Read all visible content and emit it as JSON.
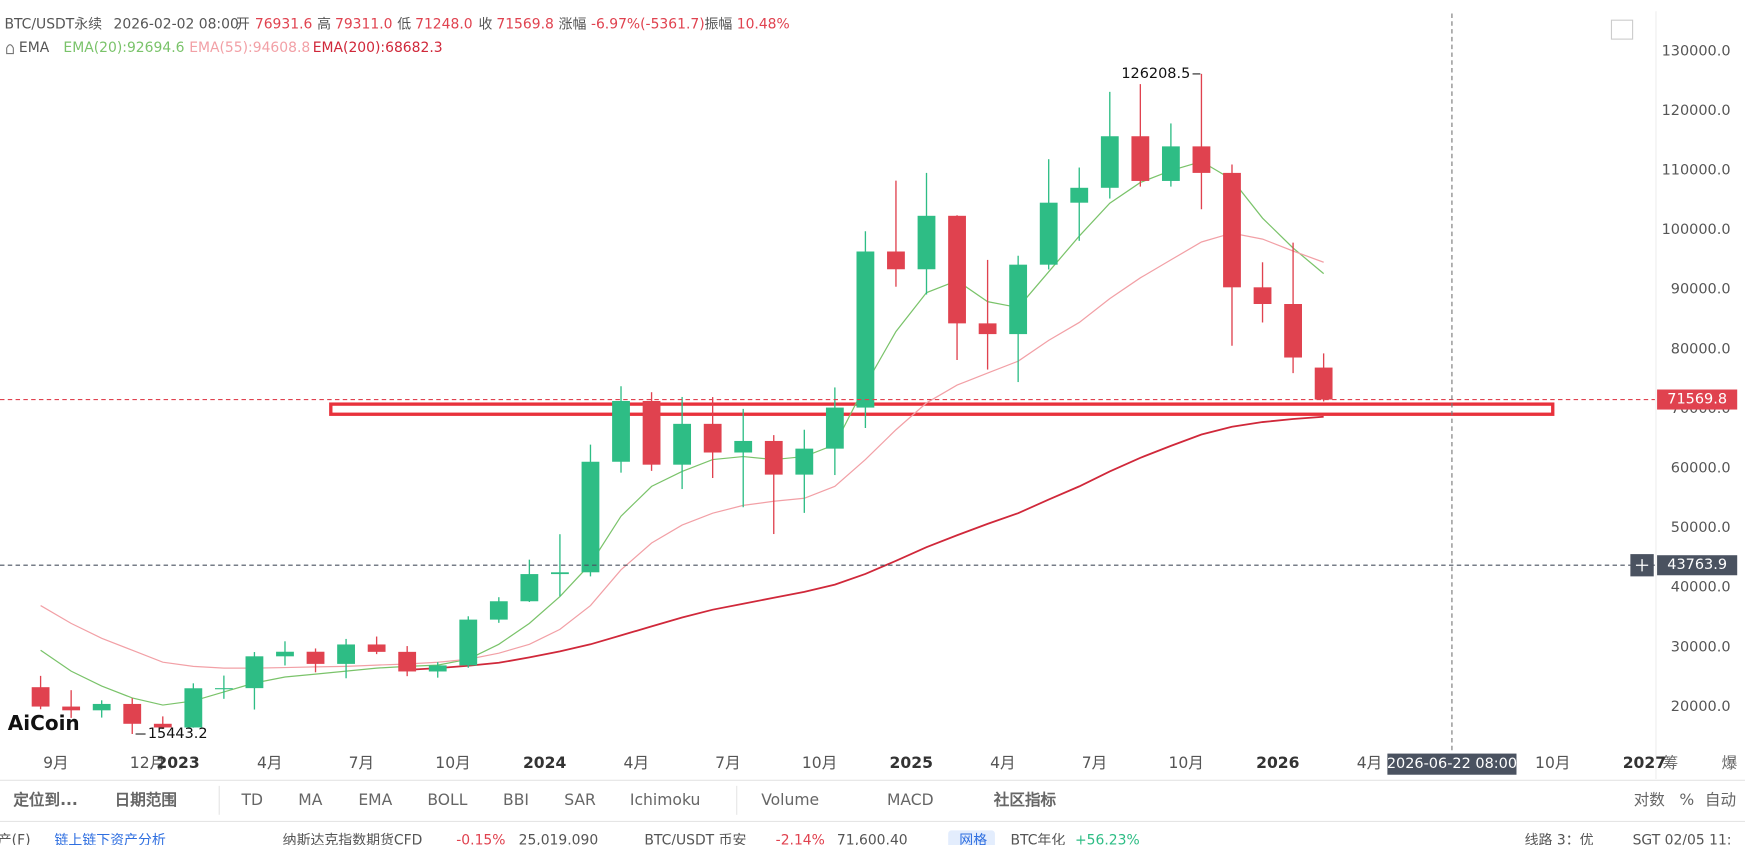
{
  "header": {
    "symbol": "BTC/USDT永续",
    "time": "2026-02-02 08:00",
    "fields": [
      {
        "label": "开",
        "value": "76931.6"
      },
      {
        "label": "高",
        "value": "79311.0"
      },
      {
        "label": "低",
        "value": "71248.0"
      },
      {
        "label": "收",
        "value": "71569.8"
      },
      {
        "label": "涨幅",
        "value": "-6.97%(-5361.7)"
      },
      {
        "label": "振幅",
        "value": "10.48%"
      }
    ],
    "indicator": "EMA"
  },
  "chart_data": {
    "type": "candlestick",
    "up_color": "#2ebd85",
    "down_color": "#e0424f",
    "candles": {
      "x": [
        "2022-08",
        "2022-09",
        "2022-10",
        "2022-11",
        "2022-12",
        "2023-01",
        "2023-02",
        "2023-03",
        "2023-04",
        "2023-05",
        "2023-06",
        "2023-07",
        "2023-08",
        "2023-09",
        "2023-10",
        "2023-11",
        "2023-12",
        "2024-01",
        "2024-02",
        "2024-03",
        "2024-04",
        "2024-05",
        "2024-06",
        "2024-07",
        "2024-08",
        "2024-09",
        "2024-10",
        "2024-11",
        "2024-12",
        "2025-01",
        "2025-02",
        "2025-03",
        "2025-04",
        "2025-05",
        "2025-06",
        "2025-07",
        "2025-08",
        "2025-09",
        "2025-10",
        "2025-11",
        "2025-12",
        "2026-01",
        "2026-02"
      ],
      "open": [
        23300,
        20050,
        19420,
        20490,
        17160,
        16540,
        23120,
        23140,
        28480,
        29250,
        27210,
        30470,
        29230,
        25940,
        26960,
        34640,
        37720,
        42280,
        42580,
        61130,
        71330,
        60640,
        67490,
        62680,
        64620,
        58970,
        63330,
        70220,
        96410,
        93430,
        102400,
        84350,
        82550,
        94200,
        104600,
        107100,
        115750,
        108250,
        114050,
        109600,
        90400,
        87600,
        76931.6
      ],
      "high": [
        25200,
        22800,
        21100,
        21450,
        18400,
        23950,
        25250,
        29200,
        31000,
        29800,
        31400,
        31800,
        30200,
        27500,
        35200,
        38400,
        44700,
        48970,
        64000,
        73800,
        72800,
        72000,
        71980,
        70000,
        65600,
        66500,
        73600,
        99800,
        108300,
        109600,
        102500,
        95000,
        95700,
        111900,
        110500,
        123200,
        124500,
        117900,
        126208.5,
        111000,
        94600,
        97900,
        79311.0
      ],
      "low": [
        19600,
        18150,
        18200,
        15443.2,
        16300,
        16500,
        21350,
        19550,
        26950,
        25800,
        24800,
        28850,
        25150,
        24900,
        26560,
        34100,
        37600,
        38550,
        41900,
        59300,
        59600,
        56550,
        58400,
        53500,
        49000,
        52550,
        58900,
        66800,
        90500,
        89200,
        78200,
        76600,
        74500,
        93400,
        98200,
        105300,
        107300,
        107300,
        103500,
        80600,
        84500,
        76000,
        71248.0
      ],
      "close": [
        20050,
        19420,
        20490,
        17160,
        16540,
        23120,
        23140,
        28480,
        29250,
        27210,
        30470,
        29230,
        25940,
        26960,
        34640,
        37720,
        42280,
        42580,
        61130,
        71330,
        60640,
        67490,
        62680,
        64620,
        58970,
        63330,
        70220,
        96410,
        93430,
        102400,
        84350,
        82550,
        94200,
        104600,
        107100,
        115750,
        108250,
        114050,
        109600,
        90400,
        87600,
        78620,
        71569.8
      ]
    },
    "series": [
      {
        "name": "EMA(20):92694.6",
        "color": "#7ac36a",
        "values": [
          29500,
          26000,
          23500,
          21500,
          20300,
          21000,
          22500,
          24000,
          25000,
          25500,
          26000,
          26500,
          26800,
          27000,
          28000,
          30500,
          34000,
          38500,
          44000,
          52000,
          57000,
          59500,
          61500,
          62000,
          61500,
          62000,
          64000,
          74000,
          83000,
          89500,
          91500,
          88000,
          87000,
          93000,
          99000,
          104500,
          108000,
          110000,
          111500,
          108500,
          102000,
          97000,
          92694.6
        ]
      },
      {
        "name": "EMA(55):94608.8",
        "color": "#f2a0a6",
        "values": [
          37000,
          34000,
          31500,
          29500,
          27500,
          26800,
          26500,
          26500,
          26600,
          26700,
          26800,
          27000,
          27200,
          27500,
          28000,
          29000,
          30500,
          33000,
          37000,
          43000,
          47500,
          50500,
          52500,
          53800,
          54500,
          55000,
          57000,
          61500,
          66500,
          71000,
          74000,
          76000,
          78000,
          81500,
          84500,
          88500,
          92000,
          95000,
          98000,
          99500,
          98500,
          96500,
          94608.8
        ]
      },
      {
        "name": "EMA(200):68682.3",
        "color": "#d0283a",
        "values": [
          null,
          null,
          null,
          null,
          null,
          null,
          null,
          null,
          null,
          null,
          null,
          null,
          26200,
          26500,
          26900,
          27400,
          28300,
          29300,
          30500,
          32000,
          33500,
          35000,
          36300,
          37300,
          38300,
          39300,
          40500,
          42300,
          44500,
          46800,
          48800,
          50700,
          52500,
          54800,
          57000,
          59500,
          61800,
          63800,
          65700,
          67000,
          67800,
          68300,
          68682.3
        ]
      }
    ],
    "ylim": [
      13000,
      135000
    ],
    "yticks": [
      {
        "value": 20000,
        "label": "20000.0"
      },
      {
        "value": 30000,
        "label": "30000.0"
      },
      {
        "value": 40000,
        "label": "40000.0"
      },
      {
        "value": 50000,
        "label": "50000.0"
      },
      {
        "value": 60000,
        "label": "60000.0"
      },
      {
        "value": 70000,
        "label": "70000.0"
      },
      {
        "value": 80000,
        "label": "80000.0"
      },
      {
        "value": 90000,
        "label": "90000.0"
      },
      {
        "value": 100000,
        "label": "100000.0"
      },
      {
        "value": 110000,
        "label": "110000.0"
      },
      {
        "value": 120000,
        "label": "120000.0"
      },
      {
        "value": 130000,
        "label": "130000.0"
      }
    ],
    "xticks": [
      {
        "value": "2022-09",
        "label": "9月"
      },
      {
        "value": "2022-12",
        "label": "12月"
      },
      {
        "value": "2023-01",
        "label": "2023"
      },
      {
        "value": "2023-04",
        "label": "4月"
      },
      {
        "value": "2023-07",
        "label": "7月"
      },
      {
        "value": "2023-10",
        "label": "10月"
      },
      {
        "value": "2024-01",
        "label": "2024"
      },
      {
        "value": "2024-04",
        "label": "4月"
      },
      {
        "value": "2024-07",
        "label": "7月"
      },
      {
        "value": "2024-10",
        "label": "10月"
      },
      {
        "value": "2025-01",
        "label": "2025"
      },
      {
        "value": "2025-04",
        "label": "4月"
      },
      {
        "value": "2025-07",
        "label": "7月"
      },
      {
        "value": "2025-10",
        "label": "10月"
      },
      {
        "value": "2026-01",
        "label": "2026"
      },
      {
        "value": "2026-04",
        "label": "4月"
      },
      {
        "value": "2026-10",
        "label": "10月"
      },
      {
        "value": "2027-01",
        "label": "2027"
      }
    ],
    "price_lines": [
      {
        "value": 71569.8,
        "label": "71569.8",
        "color": "#e0424f"
      },
      {
        "value": 43763.9,
        "label": "43763.9",
        "color": "#4a5260"
      }
    ],
    "crosshair": {
      "x": "2026-06-22",
      "label": "2026-06-22 08:00"
    },
    "zone": {
      "from": "2023-06",
      "to": "2026-10",
      "low": 69100,
      "high": 70800,
      "color": "#e8323c"
    },
    "annotations": [
      {
        "label": "126208.5",
        "value": 126208.5,
        "x": "2025-10"
      },
      {
        "label": "15443.2",
        "value": 15443.2,
        "x": "2022-11"
      }
    ]
  },
  "logo": "AiCoin",
  "axis_buttons": [
    "筹",
    "爆"
  ],
  "toolbar": {
    "left": [
      "定位到...",
      "日期范围"
    ],
    "indicators": [
      "TD",
      "MA",
      "EMA",
      "BOLL",
      "BBI",
      "SAR",
      "Ichimoku",
      "Volume",
      "MACD",
      "社区指标"
    ],
    "right": [
      "对数",
      "%",
      "自动"
    ]
  },
  "status": [
    "产(F)",
    "链上链下资产分析",
    "纳斯达克指数期货CFD",
    "-0.15%",
    "25,019.090",
    "BTC/USDT 币安",
    "-2.14%",
    "71,600.40",
    "网格",
    "BTC年化",
    "+56.23%",
    "线路 3：优",
    "SGT 02/05 11:"
  ]
}
